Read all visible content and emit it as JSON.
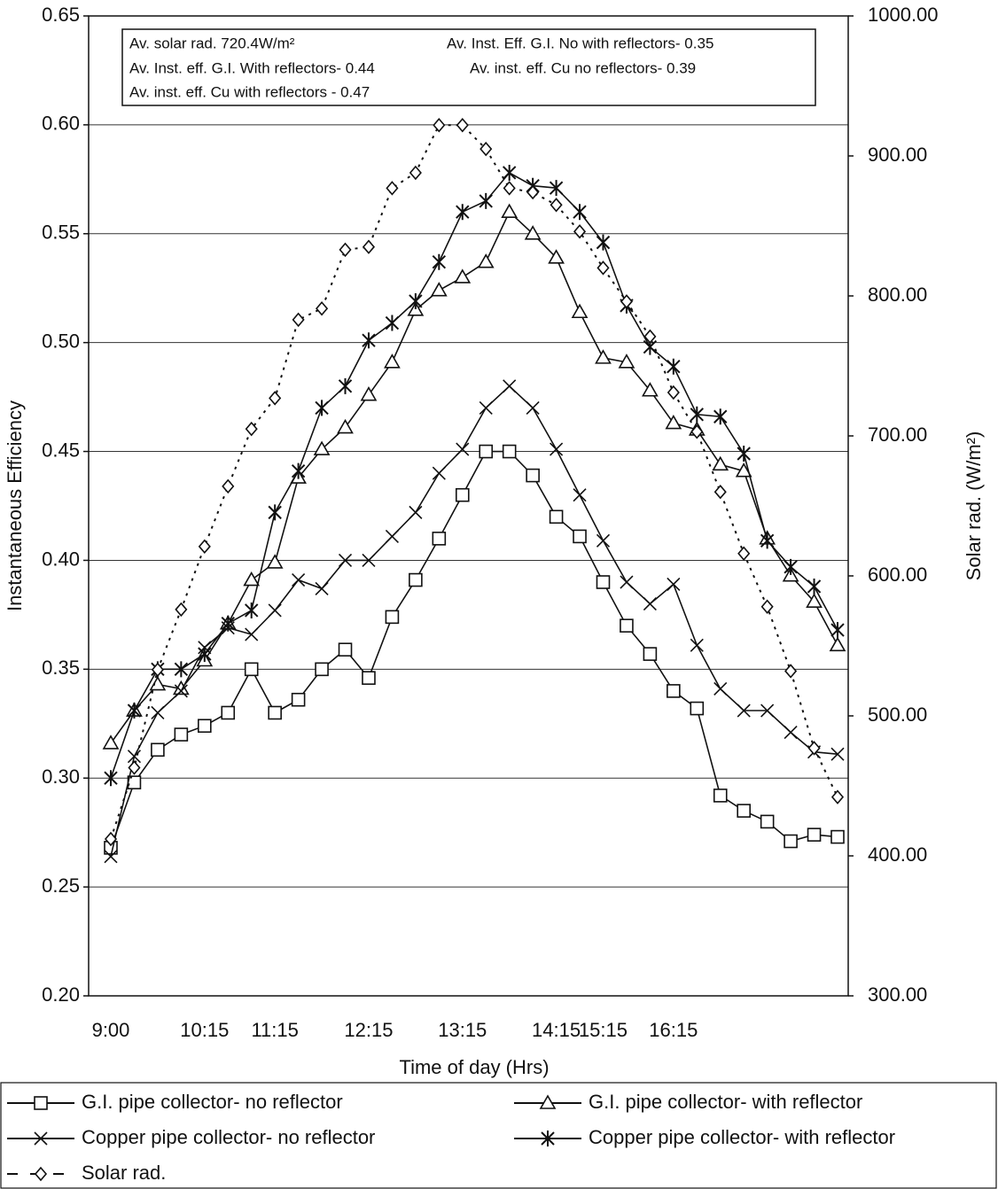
{
  "chart_data": {
    "type": "line",
    "x_label": "Time of day (Hrs)",
    "y_label": "Instantaneous Efficiency",
    "y2_label": "Solar rad. (W/m²)",
    "annotations": [
      "Av. solar rad. 720.4W/m²",
      "Av. Inst. Eff. G.I. No with reflectors- 0.35",
      "Av. Inst. eff. G.I. With reflectors- 0.44",
      "Av. inst. eff. Cu  no reflectors- 0.39",
      "Av. inst. eff. Cu with reflectors - 0.47"
    ],
    "categories": [
      "9:00",
      null,
      null,
      null,
      "10:15",
      null,
      null,
      "11:15",
      null,
      null,
      null,
      "12:15",
      null,
      null,
      null,
      "13:15",
      null,
      null,
      null,
      "14:15",
      null,
      "15:15",
      null,
      null,
      "16:15",
      null,
      null,
      null,
      null,
      null,
      null,
      null
    ],
    "ylim": [
      0.2,
      0.65
    ],
    "yticks": [
      {
        "value": 0.2,
        "label": "0.20"
      },
      0.25,
      {
        "value": 0.3,
        "label": "0.30"
      },
      0.35,
      {
        "value": 0.4,
        "label": "0.40"
      },
      0.45,
      {
        "value": 0.5,
        "label": "0.50"
      },
      0.55,
      {
        "value": 0.6,
        "label": "0.60"
      },
      0.65
    ],
    "y2lim": [
      300,
      1000
    ],
    "y2ticks": [
      {
        "value": 300,
        "label": "300.00"
      },
      {
        "value": 400,
        "label": "400.00"
      },
      {
        "value": 500,
        "label": "500.00"
      },
      {
        "value": 600,
        "label": "600.00"
      },
      {
        "value": 700,
        "label": "700.00"
      },
      {
        "value": 800,
        "label": "800.00"
      },
      {
        "value": 900,
        "label": "900.00"
      },
      {
        "value": 1000,
        "label": "1000.00"
      }
    ],
    "grid": true,
    "legend": "bottom",
    "series": [
      {
        "name": "G.I. pipe collector- no reflector",
        "color": "#111111",
        "marker": "square",
        "values": [
          0.268,
          0.298,
          0.313,
          0.32,
          0.324,
          0.33,
          0.35,
          0.33,
          0.336,
          0.35,
          0.359,
          0.346,
          0.374,
          0.391,
          0.41,
          0.43,
          0.45,
          0.45,
          0.439,
          0.42,
          0.411,
          0.39,
          0.37,
          0.357,
          0.34,
          0.332,
          0.292,
          0.285,
          0.28,
          0.271,
          0.274,
          0.273
        ]
      },
      {
        "name": "G.I. pipe collector- with reflector",
        "color": "#111111",
        "marker": "triangle",
        "values": [
          0.316,
          0.331,
          0.343,
          0.341,
          0.354,
          0.371,
          0.391,
          0.399,
          0.438,
          0.451,
          0.461,
          0.476,
          0.491,
          0.515,
          0.524,
          0.53,
          0.537,
          0.56,
          0.55,
          0.539,
          0.514,
          0.493,
          0.491,
          0.478,
          0.463,
          0.46,
          0.444,
          0.441,
          0.41,
          0.393,
          0.381,
          0.361
        ]
      },
      {
        "name": "Copper pipe collector- no reflector",
        "color": "#111111",
        "marker": "x",
        "values": [
          0.264,
          0.31,
          0.33,
          0.34,
          0.36,
          0.369,
          0.366,
          0.377,
          0.391,
          0.387,
          0.4,
          0.4,
          0.411,
          0.422,
          0.44,
          0.451,
          0.47,
          0.48,
          0.47,
          0.451,
          0.43,
          0.409,
          0.39,
          0.38,
          0.389,
          0.361,
          0.341,
          0.331,
          0.331,
          0.321,
          0.312,
          0.311
        ]
      },
      {
        "name": "Copper pipe collector- with reflector",
        "color": "#111111",
        "marker": "star",
        "values": [
          0.3,
          0.331,
          0.35,
          0.35,
          0.357,
          0.371,
          0.377,
          0.422,
          0.441,
          0.47,
          0.48,
          0.501,
          0.509,
          0.519,
          0.537,
          0.56,
          0.565,
          0.578,
          0.572,
          0.571,
          0.56,
          0.546,
          0.517,
          0.498,
          0.489,
          0.467,
          0.466,
          0.449,
          0.409,
          0.397,
          0.388,
          0.368
        ]
      },
      {
        "name": "Solar rad.",
        "color": "#111111",
        "marker": "diamond",
        "dashed": true,
        "axis": "y2",
        "values": [
          412,
          463,
          533,
          576,
          621,
          664,
          705,
          727,
          783,
          791,
          833,
          835,
          877,
          888,
          922,
          922,
          905,
          877,
          874,
          865,
          846,
          820,
          796,
          771,
          731,
          703,
          660,
          616,
          578,
          532,
          477,
          442
        ]
      }
    ]
  }
}
